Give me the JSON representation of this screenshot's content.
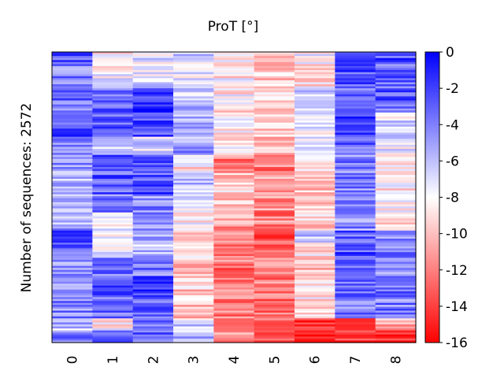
{
  "chart_data": {
    "type": "heatmap",
    "title": "ProT [°]",
    "xlabel": "",
    "ylabel": "Number of sequences: 2572",
    "columns": [
      "0",
      "1",
      "2",
      "3",
      "4",
      "5",
      "6",
      "7",
      "8"
    ],
    "rows": 2572,
    "colorbar": {
      "min": -16,
      "max": 0,
      "ticks": [
        "0",
        "-2",
        "-4",
        "-6",
        "-8",
        "-10",
        "-12",
        "-14",
        "-16"
      ],
      "colormap": [
        "#0000ff",
        "#ffffff",
        "#ff0000"
      ]
    },
    "row_groups": [
      {
        "fraction": 0.04,
        "values": [
          -3,
          -8.3,
          -7.5,
          -7,
          -8.8,
          -9.5,
          -8,
          -2,
          -2.5
        ]
      },
      {
        "fraction": 0.08,
        "values": [
          -4,
          -8,
          -7,
          -7,
          -8.5,
          -9.8,
          -8.5,
          -2.5,
          -3
        ]
      },
      {
        "fraction": 0.08,
        "values": [
          -3.5,
          -3.5,
          -2,
          -6,
          -8.5,
          -9.5,
          -7,
          -3,
          -3
        ]
      },
      {
        "fraction": 0.08,
        "values": [
          -2.5,
          -3,
          -2.5,
          -6,
          -8.5,
          -10,
          -7.5,
          -2.5,
          -7
        ]
      },
      {
        "fraction": 0.06,
        "values": [
          -3.5,
          -7,
          -6.5,
          -5,
          -9,
          -10,
          -7.5,
          -3,
          -7.5
        ]
      },
      {
        "fraction": 0.06,
        "values": [
          -5,
          -3,
          -3,
          -9,
          -12,
          -12,
          -9.5,
          -4,
          -9
        ]
      },
      {
        "fraction": 0.07,
        "values": [
          -6,
          -3,
          -2.5,
          -6.5,
          -9.5,
          -11,
          -9.5,
          -4,
          -8.5
        ]
      },
      {
        "fraction": 0.06,
        "values": [
          -6,
          -4,
          -4.5,
          -7,
          -10.5,
          -11.5,
          -10,
          -4.5,
          -8
        ]
      },
      {
        "fraction": 0.06,
        "values": [
          -5,
          -8,
          -4,
          -8.5,
          -11,
          -12,
          -9.5,
          -4.5,
          -8.5
        ]
      },
      {
        "fraction": 0.04,
        "values": [
          -3,
          -7.5,
          -4.5,
          -9,
          -11.5,
          -13,
          -6,
          -3,
          -4
        ]
      },
      {
        "fraction": 0.05,
        "values": [
          -3.5,
          -7,
          -6,
          -9,
          -11.5,
          -12.5,
          -9,
          -2.5,
          -4
        ]
      },
      {
        "fraction": 0.06,
        "values": [
          -5,
          -4,
          -4,
          -10,
          -12.5,
          -11,
          -9.5,
          -3,
          -4
        ]
      },
      {
        "fraction": 0.07,
        "values": [
          -4,
          -3,
          -2,
          -9.5,
          -12.5,
          -12,
          -9,
          -3,
          -3.5
        ]
      },
      {
        "fraction": 0.07,
        "values": [
          -4,
          -3.5,
          -3.5,
          -10,
          -12.5,
          -12.5,
          -8.5,
          -4,
          -4
        ]
      },
      {
        "fraction": 0.04,
        "values": [
          -6,
          -8.5,
          -4,
          -7,
          -11,
          -13,
          -15,
          -14,
          -11
        ]
      },
      {
        "fraction": 0.04,
        "values": [
          -4,
          -3.5,
          -3.5,
          -6,
          -11.5,
          -13,
          -15,
          -14,
          -14
        ]
      }
    ]
  }
}
